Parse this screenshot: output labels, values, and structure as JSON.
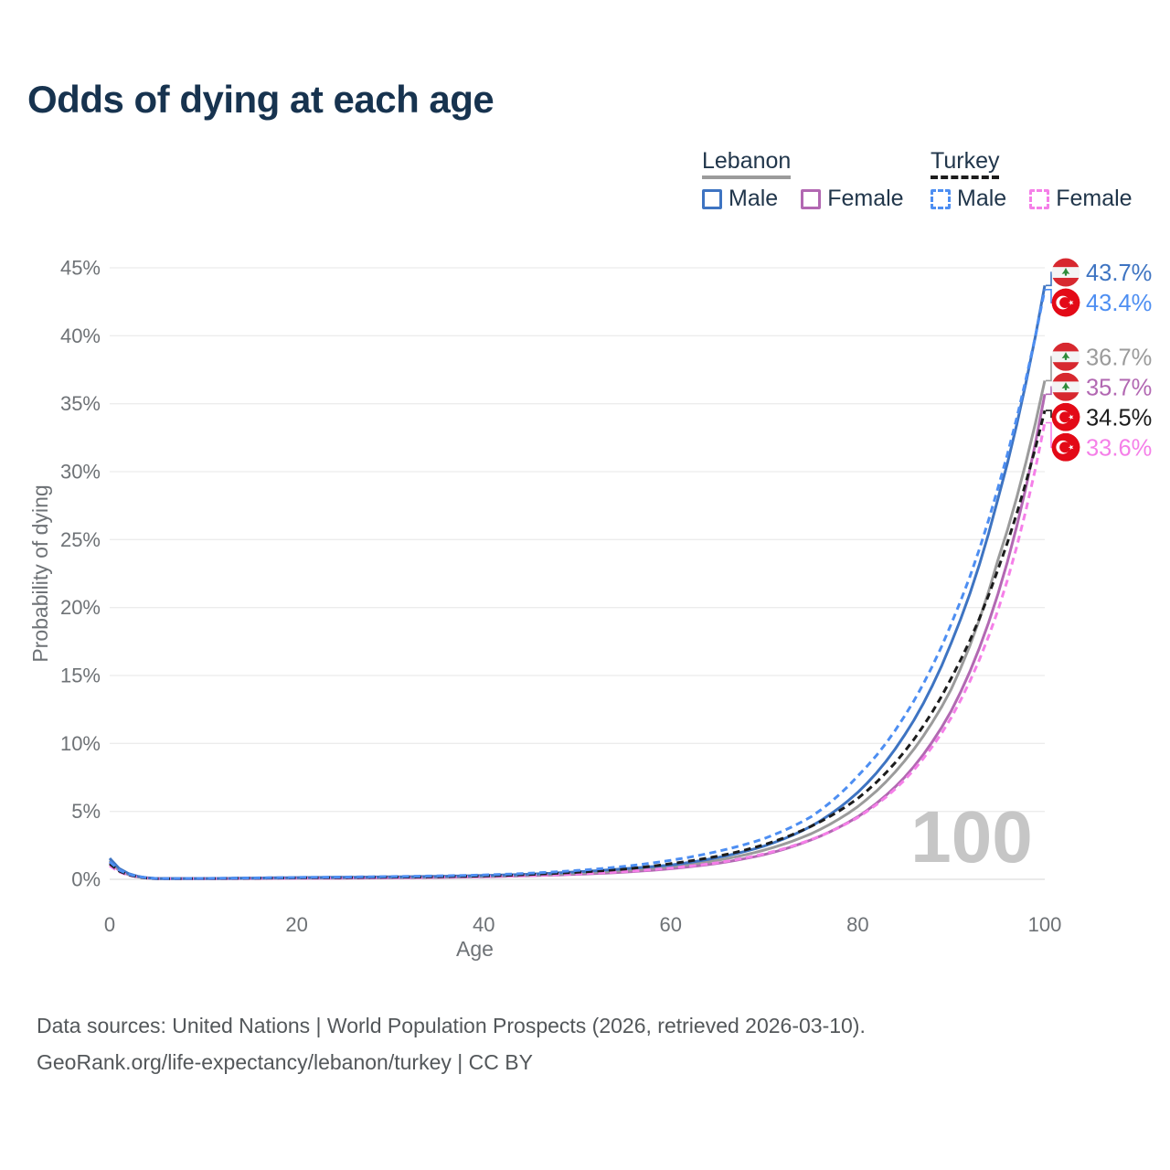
{
  "title": "Odds of dying at each age",
  "legend": {
    "lebanon": {
      "label": "Lebanon",
      "male": "Male",
      "female": "Female"
    },
    "turkey": {
      "label": "Turkey",
      "male": "Male",
      "female": "Female"
    }
  },
  "colors": {
    "lebanon_line": "#9b9b9b",
    "turkey_line": "#1c1c1c",
    "lebanon_male": "#3e74c2",
    "lebanon_female": "#b268b2",
    "turkey_male": "#4d8ef2",
    "turkey_female": "#f57fe8",
    "axis_text": "#6e7276",
    "grid": "#ececec",
    "grid_zero": "#dedede",
    "watermark": "#c6c6c6",
    "title_text": "#17334f",
    "legend_text": "#21364b",
    "footer_text": "#53575a",
    "flag_red_lebanon": "#d7282f",
    "flag_green": "#2e8b3a",
    "flag_red_turkey": "#e30a17"
  },
  "chart_data": {
    "type": "line",
    "title": "Odds of dying at each age",
    "xlabel": "Age",
    "ylabel": "Probability of dying",
    "xlim": [
      0,
      100
    ],
    "ylim_pct": [
      0,
      45
    ],
    "x_ticks": [
      0,
      20,
      40,
      60,
      80,
      100
    ],
    "y_tick_labels": [
      "0%",
      "5%",
      "10%",
      "15%",
      "20%",
      "25%",
      "30%",
      "35%",
      "40%",
      "45%"
    ],
    "grid": true,
    "legend_position": "top-right",
    "age_indicator": "100",
    "ages": [
      0,
      5,
      10,
      15,
      20,
      25,
      30,
      35,
      40,
      45,
      50,
      55,
      60,
      65,
      70,
      75,
      80,
      85,
      90,
      95,
      100
    ],
    "series": [
      {
        "id": "lebanon_male",
        "name": "Lebanon Male",
        "country": "Lebanon",
        "sex": "Male",
        "style": "solid",
        "color_key": "lebanon_male",
        "flag": "lebanon",
        "end_label": "43.7%",
        "values_pct": [
          1.55,
          0.06,
          0.06,
          0.09,
          0.13,
          0.15,
          0.18,
          0.22,
          0.28,
          0.38,
          0.55,
          0.78,
          1.05,
          1.6,
          2.45,
          3.9,
          6.4,
          10.6,
          17.4,
          28.0,
          43.7
        ]
      },
      {
        "id": "turkey_male",
        "name": "Turkey Male",
        "country": "Turkey",
        "sex": "Male",
        "style": "dashed",
        "color_key": "turkey_male",
        "flag": "turkey",
        "end_label": "43.4%",
        "values_pct": [
          1.3,
          0.06,
          0.07,
          0.1,
          0.14,
          0.17,
          0.2,
          0.25,
          0.32,
          0.45,
          0.65,
          0.95,
          1.4,
          2.05,
          3.0,
          4.6,
          7.6,
          12.0,
          18.8,
          28.8,
          43.4
        ]
      },
      {
        "id": "lebanon_both",
        "name": "Lebanon",
        "country": "Lebanon",
        "sex": "Both",
        "style": "solid",
        "color_key": "lebanon_line",
        "flag": "lebanon",
        "end_label": "36.7%",
        "values_pct": [
          1.4,
          0.05,
          0.05,
          0.08,
          0.11,
          0.13,
          0.15,
          0.18,
          0.23,
          0.32,
          0.45,
          0.65,
          0.92,
          1.4,
          2.15,
          3.35,
          5.35,
          8.7,
          14.0,
          23.5,
          36.7
        ]
      },
      {
        "id": "lebanon_female",
        "name": "Lebanon Female",
        "country": "Lebanon",
        "sex": "Female",
        "style": "solid",
        "color_key": "lebanon_female",
        "flag": "lebanon",
        "end_label": "35.7%",
        "values_pct": [
          1.25,
          0.05,
          0.05,
          0.06,
          0.08,
          0.09,
          0.11,
          0.14,
          0.19,
          0.27,
          0.37,
          0.53,
          0.78,
          1.18,
          1.82,
          2.9,
          4.6,
          7.5,
          12.4,
          21.0,
          35.7
        ]
      },
      {
        "id": "turkey_both",
        "name": "Turkey",
        "country": "Turkey",
        "sex": "Both",
        "style": "dashed",
        "color_key": "turkey_line",
        "flag": "turkey",
        "end_label": "34.5%",
        "values_pct": [
          1.15,
          0.05,
          0.06,
          0.08,
          0.11,
          0.13,
          0.16,
          0.19,
          0.25,
          0.36,
          0.52,
          0.75,
          1.15,
          1.7,
          2.55,
          3.9,
          5.95,
          9.4,
          14.8,
          22.8,
          34.5
        ]
      },
      {
        "id": "turkey_female",
        "name": "Turkey Female",
        "country": "Turkey",
        "sex": "Female",
        "style": "dashed",
        "color_key": "turkey_female",
        "flag": "turkey",
        "end_label": "33.6%",
        "values_pct": [
          1.0,
          0.05,
          0.05,
          0.07,
          0.08,
          0.1,
          0.12,
          0.15,
          0.2,
          0.28,
          0.4,
          0.57,
          0.83,
          1.22,
          1.88,
          2.92,
          4.55,
          7.3,
          11.9,
          19.8,
          33.6
        ]
      }
    ]
  },
  "footer": {
    "line1": "Data sources: United Nations | World Population Prospects (2026, retrieved 2026-03-10).",
    "line2": "GeoRank.org/life-expectancy/lebanon/turkey | CC BY"
  }
}
